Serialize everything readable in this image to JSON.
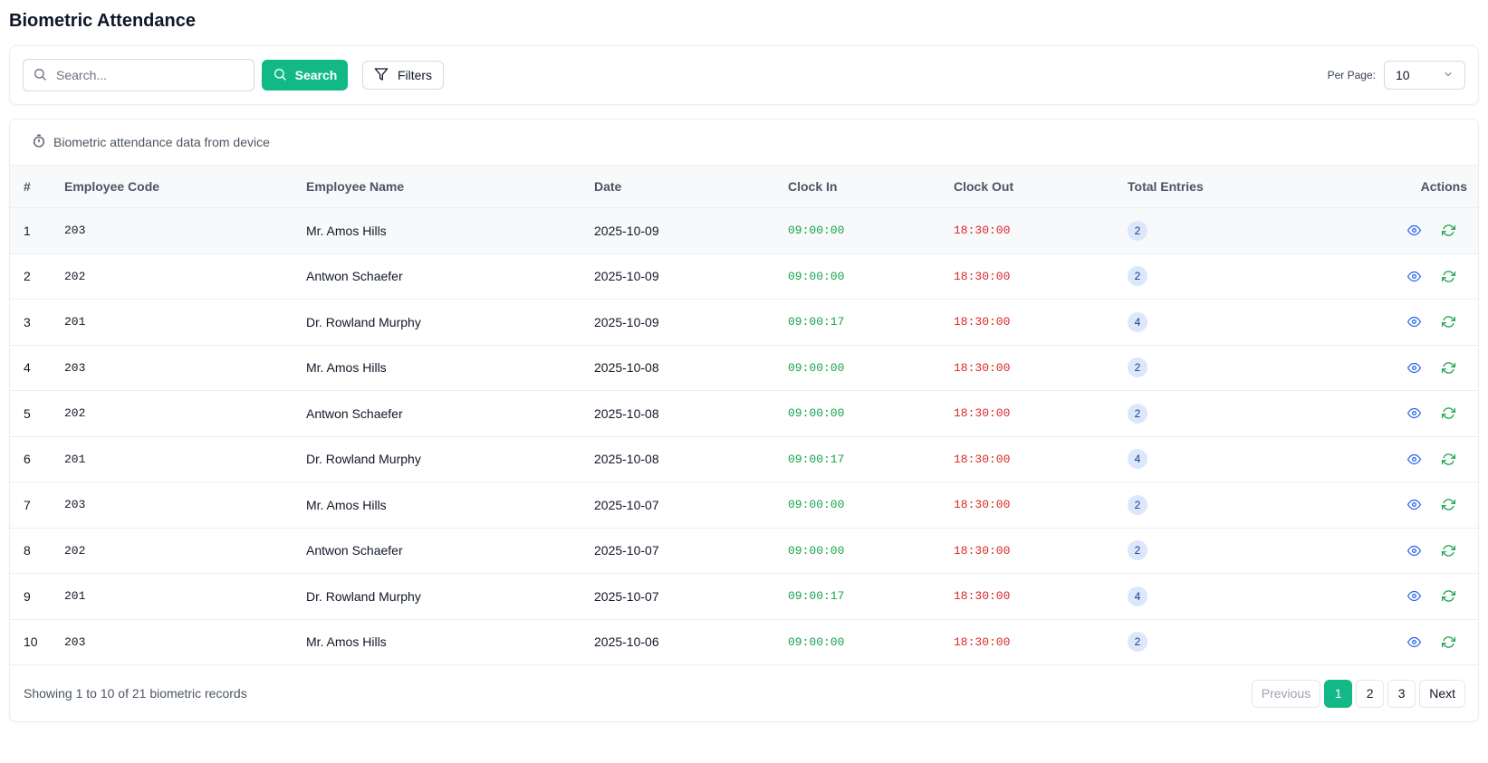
{
  "page": {
    "title": "Biometric Attendance"
  },
  "toolbar": {
    "search_placeholder": "Search...",
    "search_button": "Search",
    "filters_button": "Filters",
    "per_page_label": "Per Page:",
    "per_page_value": "10"
  },
  "info": {
    "text": "Biometric attendance data from device"
  },
  "table": {
    "columns": [
      "#",
      "Employee Code",
      "Employee Name",
      "Date",
      "Clock In",
      "Clock Out",
      "Total Entries",
      "Actions"
    ],
    "rows": [
      {
        "idx": "1",
        "code": "203",
        "name": "Mr. Amos Hills",
        "date": "2025-10-09",
        "clock_in": "09:00:00",
        "clock_out": "18:30:00",
        "entries": "2"
      },
      {
        "idx": "2",
        "code": "202",
        "name": "Antwon Schaefer",
        "date": "2025-10-09",
        "clock_in": "09:00:00",
        "clock_out": "18:30:00",
        "entries": "2"
      },
      {
        "idx": "3",
        "code": "201",
        "name": "Dr. Rowland Murphy",
        "date": "2025-10-09",
        "clock_in": "09:00:17",
        "clock_out": "18:30:00",
        "entries": "4"
      },
      {
        "idx": "4",
        "code": "203",
        "name": "Mr. Amos Hills",
        "date": "2025-10-08",
        "clock_in": "09:00:00",
        "clock_out": "18:30:00",
        "entries": "2"
      },
      {
        "idx": "5",
        "code": "202",
        "name": "Antwon Schaefer",
        "date": "2025-10-08",
        "clock_in": "09:00:00",
        "clock_out": "18:30:00",
        "entries": "2"
      },
      {
        "idx": "6",
        "code": "201",
        "name": "Dr. Rowland Murphy",
        "date": "2025-10-08",
        "clock_in": "09:00:17",
        "clock_out": "18:30:00",
        "entries": "4"
      },
      {
        "idx": "7",
        "code": "203",
        "name": "Mr. Amos Hills",
        "date": "2025-10-07",
        "clock_in": "09:00:00",
        "clock_out": "18:30:00",
        "entries": "2"
      },
      {
        "idx": "8",
        "code": "202",
        "name": "Antwon Schaefer",
        "date": "2025-10-07",
        "clock_in": "09:00:00",
        "clock_out": "18:30:00",
        "entries": "2"
      },
      {
        "idx": "9",
        "code": "201",
        "name": "Dr. Rowland Murphy",
        "date": "2025-10-07",
        "clock_in": "09:00:17",
        "clock_out": "18:30:00",
        "entries": "4"
      },
      {
        "idx": "10",
        "code": "203",
        "name": "Mr. Amos Hills",
        "date": "2025-10-06",
        "clock_in": "09:00:00",
        "clock_out": "18:30:00",
        "entries": "2"
      }
    ],
    "row_action_icons": [
      "eye-icon",
      "refresh-icon"
    ]
  },
  "footer": {
    "showing_text": "Showing 1 to 10 of 21 biometric records",
    "pagination": {
      "previous": "Previous",
      "pages": [
        "1",
        "2",
        "3"
      ],
      "active_page": "1",
      "next": "Next"
    }
  },
  "colors": {
    "accent": "#12b886",
    "clock_in": "#16a34a",
    "clock_out": "#dc2626",
    "badge_bg": "#dbe7fb",
    "action_icon": "#2563eb",
    "sync_icon": "#16a34a"
  }
}
